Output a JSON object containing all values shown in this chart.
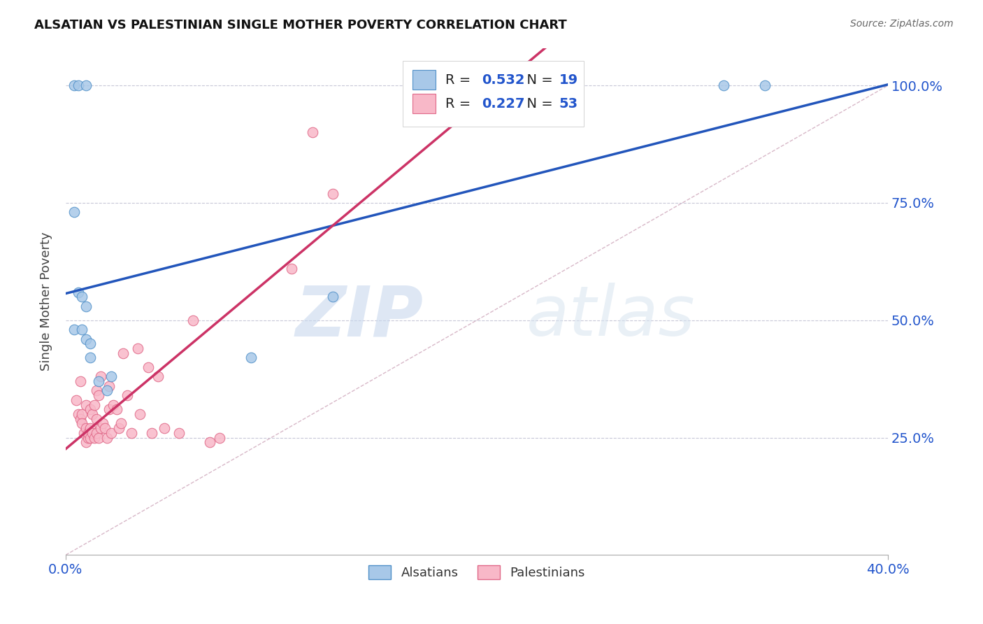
{
  "title": "ALSATIAN VS PALESTINIAN SINGLE MOTHER POVERTY CORRELATION CHART",
  "source": "Source: ZipAtlas.com",
  "ylabel": "Single Mother Poverty",
  "x_ticks": [
    0.0,
    0.4
  ],
  "x_tick_labels": [
    "0.0%",
    "40.0%"
  ],
  "y_ticks": [
    0.25,
    0.5,
    0.75,
    1.0
  ],
  "y_tick_labels": [
    "25.0%",
    "50.0%",
    "75.0%",
    "100.0%"
  ],
  "x_range": [
    0.0,
    0.4
  ],
  "y_range": [
    0.0,
    1.08
  ],
  "alsatian_color": "#a8c8e8",
  "alsatian_edge": "#5090c8",
  "palestinian_color": "#f8b8c8",
  "palestinian_edge": "#e06888",
  "regression_alsatian_color": "#2255bb",
  "regression_palestinian_color": "#cc3366",
  "diagonal_color": "#c8c8d8",
  "R_alsatian": 0.532,
  "N_alsatian": 19,
  "R_palestinian": 0.227,
  "N_palestinian": 53,
  "alsatian_x": [
    0.004,
    0.006,
    0.01,
    0.004,
    0.004,
    0.006,
    0.008,
    0.008,
    0.01,
    0.01,
    0.012,
    0.012,
    0.016,
    0.02,
    0.022,
    0.09,
    0.13,
    0.32,
    0.34
  ],
  "alsatian_y": [
    1.0,
    1.0,
    1.0,
    0.73,
    0.48,
    0.56,
    0.55,
    0.48,
    0.46,
    0.53,
    0.42,
    0.45,
    0.37,
    0.35,
    0.38,
    0.42,
    0.55,
    1.0,
    1.0
  ],
  "palestinian_x": [
    0.005,
    0.006,
    0.007,
    0.007,
    0.008,
    0.008,
    0.009,
    0.01,
    0.01,
    0.01,
    0.011,
    0.011,
    0.012,
    0.012,
    0.012,
    0.013,
    0.013,
    0.014,
    0.014,
    0.015,
    0.015,
    0.015,
    0.016,
    0.016,
    0.017,
    0.017,
    0.018,
    0.019,
    0.02,
    0.021,
    0.021,
    0.022,
    0.023,
    0.025,
    0.026,
    0.027,
    0.028,
    0.03,
    0.032,
    0.035,
    0.036,
    0.04,
    0.042,
    0.045,
    0.048,
    0.055,
    0.062,
    0.07,
    0.075,
    0.11,
    0.12,
    0.13,
    0.175
  ],
  "palestinian_y": [
    0.33,
    0.3,
    0.37,
    0.29,
    0.3,
    0.28,
    0.26,
    0.27,
    0.24,
    0.32,
    0.25,
    0.26,
    0.25,
    0.27,
    0.31,
    0.26,
    0.3,
    0.32,
    0.25,
    0.26,
    0.29,
    0.35,
    0.25,
    0.34,
    0.27,
    0.38,
    0.28,
    0.27,
    0.25,
    0.31,
    0.36,
    0.26,
    0.32,
    0.31,
    0.27,
    0.28,
    0.43,
    0.34,
    0.26,
    0.44,
    0.3,
    0.4,
    0.26,
    0.38,
    0.27,
    0.26,
    0.5,
    0.24,
    0.25,
    0.61,
    0.9,
    0.77,
    0.95
  ],
  "watermark_zip": "ZIP",
  "watermark_atlas": "atlas",
  "marker_size": 110
}
